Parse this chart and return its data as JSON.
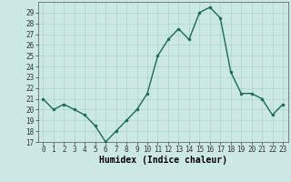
{
  "x": [
    0,
    1,
    2,
    3,
    4,
    5,
    6,
    7,
    8,
    9,
    10,
    11,
    12,
    13,
    14,
    15,
    16,
    17,
    18,
    19,
    20,
    21,
    22,
    23
  ],
  "y": [
    21,
    20,
    20.5,
    20,
    19.5,
    18.5,
    17,
    18,
    19,
    20,
    21.5,
    25,
    26.5,
    27.5,
    26.5,
    29,
    29.5,
    28.5,
    23.5,
    21.5,
    21.5,
    21,
    19.5,
    20.5
  ],
  "line_color": "#1a6b5a",
  "marker_color": "#1a6b5a",
  "bg_color": "#cce8e4",
  "grid_color": "#aad4ce",
  "xlabel": "Humidex (Indice chaleur)",
  "xlim": [
    -0.5,
    23.5
  ],
  "ylim": [
    17,
    30
  ],
  "yticks": [
    17,
    18,
    19,
    20,
    21,
    22,
    23,
    24,
    25,
    26,
    27,
    28,
    29
  ],
  "xticks": [
    0,
    1,
    2,
    3,
    4,
    5,
    6,
    7,
    8,
    9,
    10,
    11,
    12,
    13,
    14,
    15,
    16,
    17,
    18,
    19,
    20,
    21,
    22,
    23
  ],
  "tick_fontsize": 5.5,
  "xlabel_fontsize": 7,
  "marker_size": 2.2,
  "line_width": 1.0
}
